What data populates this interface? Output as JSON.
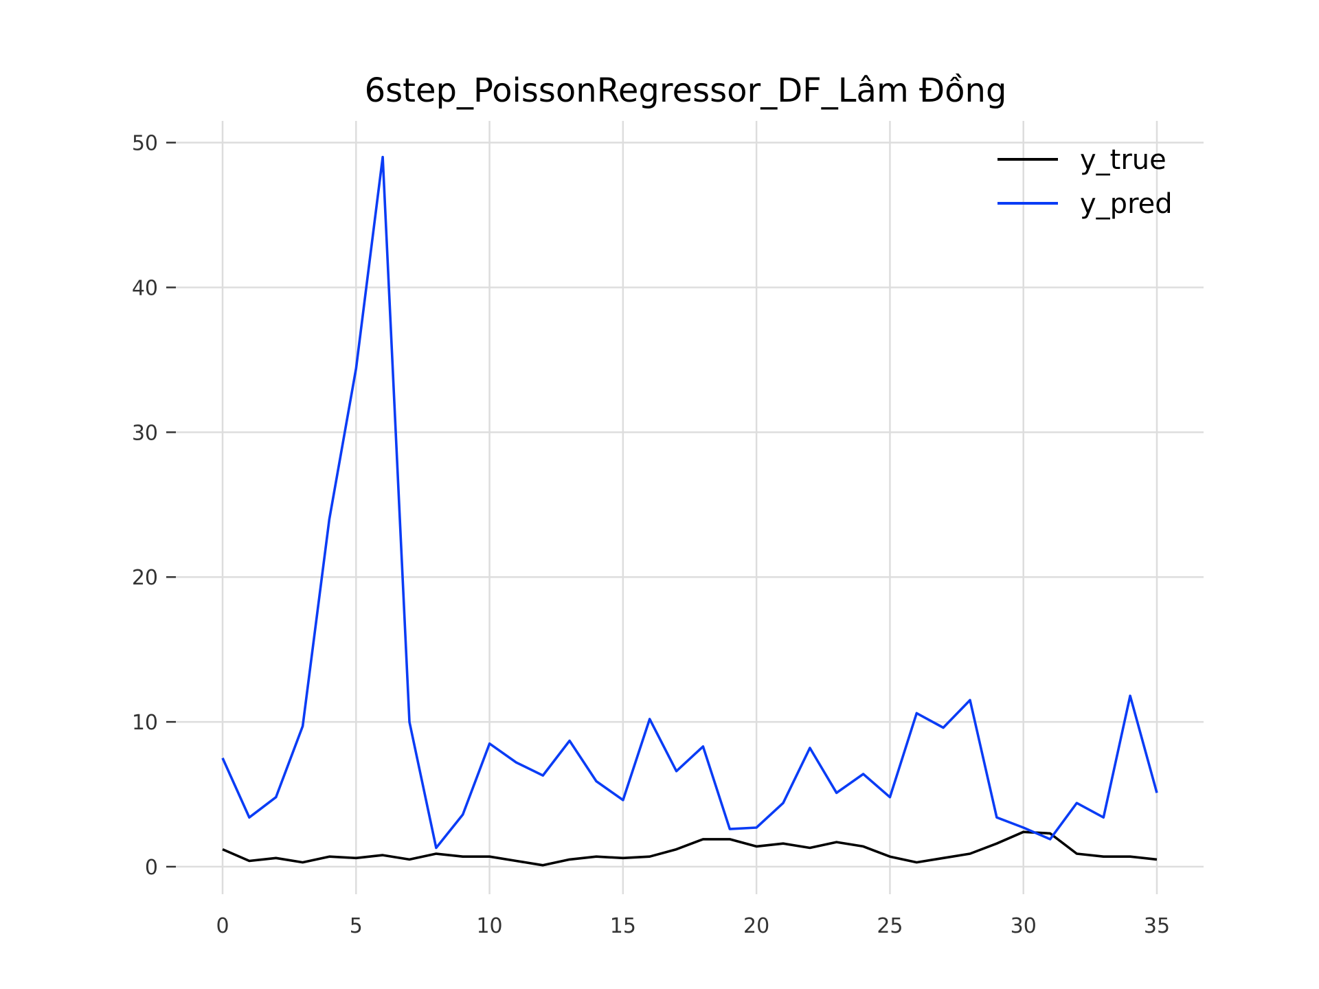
{
  "chart_data": {
    "type": "line",
    "title": "6step_PoissonRegressor_DF_Lâm Đồng",
    "xlabel": "",
    "ylabel": "",
    "xlim": [
      -1.75,
      36.75
    ],
    "ylim": [
      -1.9,
      51.5
    ],
    "x_ticks": [
      0,
      5,
      10,
      15,
      20,
      25,
      30,
      35
    ],
    "y_ticks": [
      0,
      10,
      20,
      30,
      40,
      50
    ],
    "grid": true,
    "legend_position": "top-right",
    "x": [
      0,
      1,
      2,
      3,
      4,
      5,
      6,
      7,
      8,
      9,
      10,
      11,
      12,
      13,
      14,
      15,
      16,
      17,
      18,
      19,
      20,
      21,
      22,
      23,
      24,
      25,
      26,
      27,
      28,
      29,
      30,
      31,
      32,
      33,
      34,
      35
    ],
    "series": [
      {
        "name": "y_true",
        "color": "#000000",
        "values": [
          1.2,
          0.4,
          0.6,
          0.3,
          0.7,
          0.6,
          0.8,
          0.5,
          0.9,
          0.7,
          0.7,
          0.4,
          0.1,
          0.5,
          0.7,
          0.6,
          0.7,
          1.2,
          1.9,
          1.9,
          1.4,
          1.6,
          1.3,
          1.7,
          1.4,
          0.7,
          0.3,
          0.6,
          0.9,
          1.6,
          2.4,
          2.3,
          0.9,
          0.7,
          0.7,
          0.5
        ]
      },
      {
        "name": "y_pred",
        "color": "#0a3cf5",
        "values": [
          7.5,
          3.4,
          4.8,
          9.7,
          24.0,
          34.4,
          49.0,
          10.0,
          1.3,
          3.6,
          8.5,
          7.2,
          6.3,
          8.7,
          5.9,
          4.6,
          10.2,
          6.6,
          8.3,
          2.6,
          2.7,
          4.4,
          8.2,
          5.1,
          6.4,
          4.8,
          10.6,
          9.6,
          11.5,
          3.4,
          2.7,
          1.9,
          4.4,
          3.4,
          11.8,
          5.1
        ]
      }
    ]
  }
}
